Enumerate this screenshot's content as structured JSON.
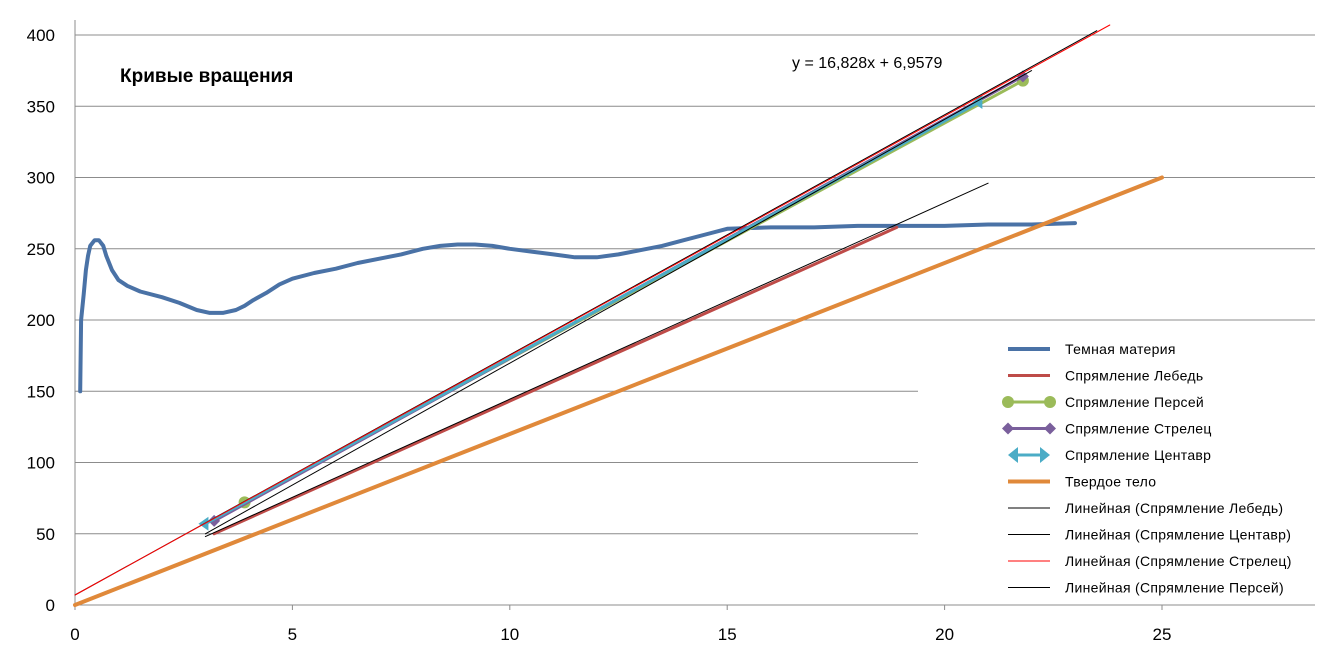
{
  "chart_data": {
    "type": "line",
    "title": "Кривые вращения",
    "xlabel": "",
    "ylabel": "",
    "xlim": [
      0,
      28.5
    ],
    "ylim": [
      0,
      400
    ],
    "xticks": [
      "0",
      "5",
      "10",
      "15",
      "20",
      "25"
    ],
    "yticks": [
      "0",
      "50",
      "100",
      "150",
      "200",
      "250",
      "300",
      "350",
      "400"
    ],
    "grid": "horizontal",
    "legend_position": "right",
    "annotation": "y = 16,828x + 6,9579",
    "series": [
      {
        "name": "Темная материя",
        "color": "#4a72a6",
        "style": "thick",
        "x": [
          0.12,
          0.14,
          0.2,
          0.25,
          0.3,
          0.35,
          0.45,
          0.55,
          0.65,
          0.72,
          0.85,
          1.0,
          1.2,
          1.5,
          2.0,
          2.4,
          2.8,
          3.1,
          3.4,
          3.7,
          3.9,
          4.1,
          4.4,
          4.7,
          5.0,
          5.5,
          6.0,
          6.5,
          7.0,
          7.5,
          8.0,
          8.4,
          8.8,
          9.2,
          9.6,
          10.0,
          10.5,
          11.0,
          11.5,
          12.0,
          12.5,
          13.0,
          13.5,
          14.0,
          14.5,
          15.0,
          16.0,
          17.0,
          18.0,
          19.0,
          20.0,
          21.0,
          22.0,
          23.0
        ],
        "y": [
          150,
          200,
          218,
          235,
          245,
          252,
          256,
          256,
          252,
          245,
          235,
          228,
          224,
          220,
          216,
          212,
          207,
          205,
          205,
          207,
          210,
          214,
          219,
          225,
          229,
          233,
          236,
          240,
          243,
          246,
          250,
          252,
          253,
          253,
          252,
          250,
          248,
          246,
          244,
          244,
          246,
          249,
          252,
          256,
          260,
          264,
          265,
          265,
          266,
          266,
          266,
          267,
          267,
          268
        ]
      },
      {
        "name": "Спрямление Лебедь",
        "color": "#be4b48",
        "style": "line",
        "x": [
          3.2,
          18.9
        ],
        "y": [
          50,
          265
        ]
      },
      {
        "name": "Спрямление Персей",
        "color": "#9bbb59",
        "style": "circle",
        "x": [
          3.9,
          21.8
        ],
        "y": [
          72,
          368
        ]
      },
      {
        "name": "Спрямление Стрелец",
        "color": "#7a5f9c",
        "style": "diamond",
        "x": [
          3.2,
          21.8
        ],
        "y": [
          59,
          371
        ]
      },
      {
        "name": "Спрямление Центавр",
        "color": "#4bacc6",
        "style": "arrow",
        "x": [
          3.0,
          20.8
        ],
        "y": [
          57,
          353
        ]
      },
      {
        "name": "Твердое тело",
        "color": "#e0893a",
        "style": "thick",
        "x": [
          0,
          25
        ],
        "y": [
          0,
          300
        ]
      },
      {
        "name": "Линейная (Спрямление Лебедь)",
        "color": "#000000",
        "style": "thin",
        "x": [
          3.0,
          21.0
        ],
        "y": [
          48,
          296
        ]
      },
      {
        "name": "Линейная (Спрямление Центавр)",
        "color": "#000000",
        "style": "thin",
        "x": [
          0,
          23.5
        ],
        "y": [
          7,
          403
        ]
      },
      {
        "name": "Линейная (Спрямление Стрелец)",
        "color": "#ff0000",
        "style": "thin",
        "x": [
          0,
          23.8
        ],
        "y": [
          7,
          407
        ]
      },
      {
        "name": "Линейная (Спрямление Персей)",
        "color": "#000000",
        "style": "thin",
        "x": [
          3.0,
          22.0
        ],
        "y": [
          50,
          375
        ]
      }
    ]
  }
}
